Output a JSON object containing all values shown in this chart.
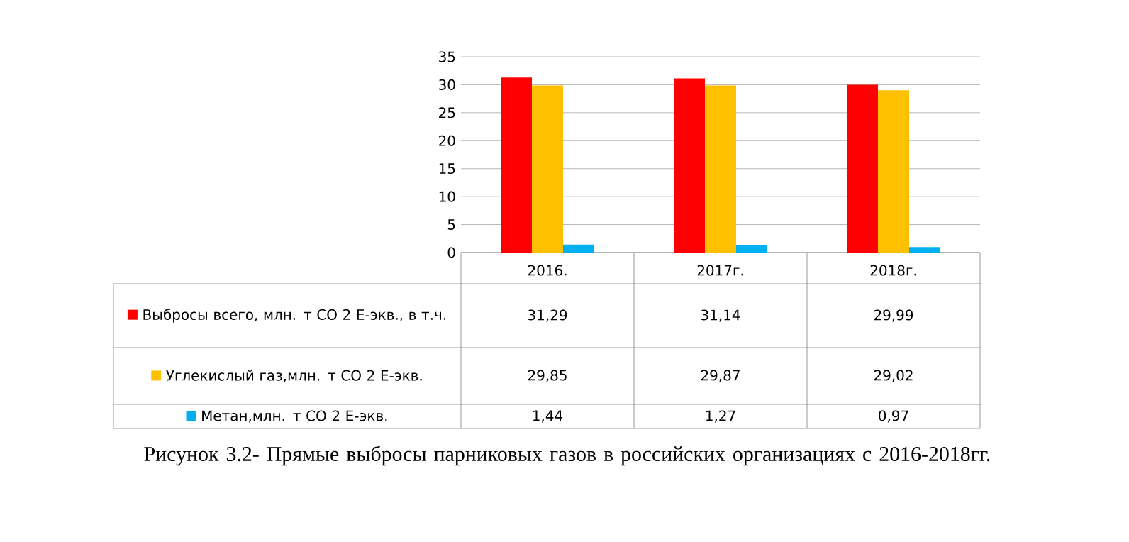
{
  "chart_data": {
    "type": "bar",
    "categories": [
      "2016.",
      "2017г.",
      "2018г."
    ],
    "series": [
      {
        "name": "Выбросы всего, млн. т CO 2 E-экв., в т.ч.",
        "color": "#ff0000",
        "values": [
          31.29,
          31.14,
          29.99
        ],
        "value_labels": [
          "31,29",
          "31,14",
          "29,99"
        ]
      },
      {
        "name": "Углекислый газ,млн. т CO 2 E-экв.",
        "color": "#ffc000",
        "values": [
          29.85,
          29.87,
          29.02
        ],
        "value_labels": [
          "29,85",
          "29,87",
          "29,02"
        ]
      },
      {
        "name": "Метан,млн. т CO 2 E-экв.",
        "color": "#00b0f0",
        "values": [
          1.44,
          1.27,
          0.97
        ],
        "value_labels": [
          "1,44",
          "1,27",
          "0,97"
        ]
      }
    ],
    "ylim": [
      0,
      35
    ],
    "yticks": [
      0,
      5,
      10,
      15,
      20,
      25,
      30,
      35
    ],
    "grid": "y",
    "legend": "bottom",
    "annotations": [
      "Рисунок 3.2- Прямые выбросы парниковых газов в российских организациях с 2016-2018гг."
    ]
  }
}
